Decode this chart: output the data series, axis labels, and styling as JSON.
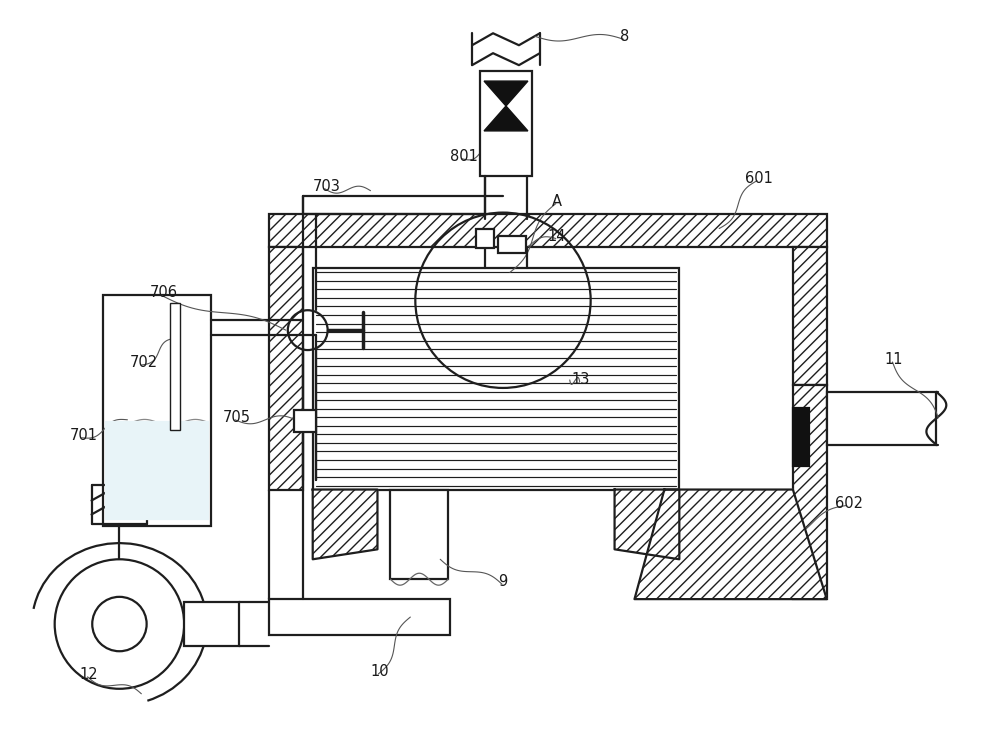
{
  "bg_color": "#ffffff",
  "lc": "#1e1e1e",
  "lw": 1.6,
  "fig_w": 10.0,
  "fig_h": 7.38,
  "dpi": 100,
  "labels": [
    [
      "8",
      620,
      28
    ],
    [
      "801",
      450,
      148
    ],
    [
      "A",
      552,
      193
    ],
    [
      "14",
      548,
      228
    ],
    [
      "601",
      746,
      170
    ],
    [
      "703",
      312,
      178
    ],
    [
      "706",
      148,
      285
    ],
    [
      "702",
      128,
      355
    ],
    [
      "701",
      68,
      428
    ],
    [
      "705",
      222,
      410
    ],
    [
      "13",
      572,
      372
    ],
    [
      "11",
      886,
      352
    ],
    [
      "602",
      836,
      496
    ],
    [
      "9",
      498,
      575
    ],
    [
      "10",
      370,
      665
    ],
    [
      "12",
      78,
      668
    ]
  ]
}
